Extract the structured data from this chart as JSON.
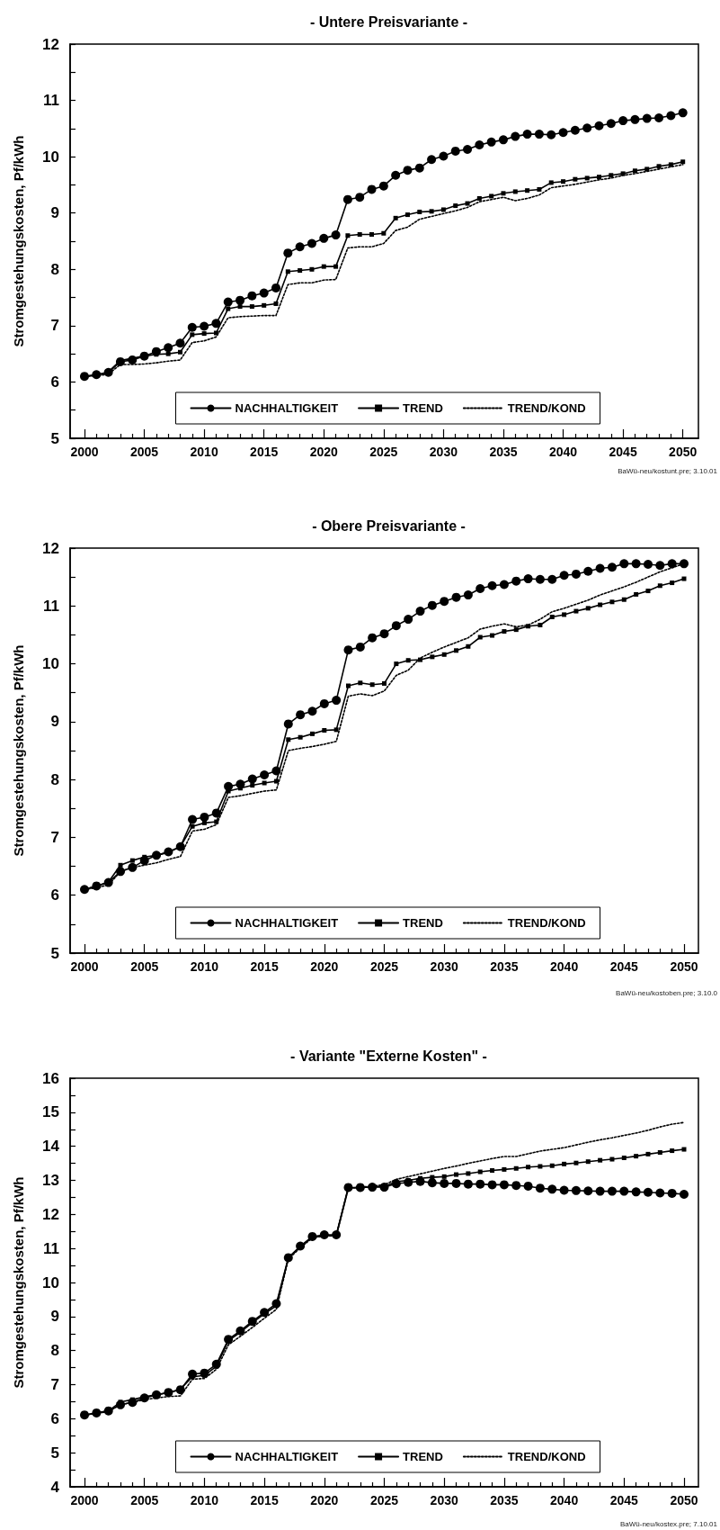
{
  "chart_data": [
    {
      "type": "line",
      "title": "- Untere Preisvariante -",
      "ylabel": "Stromgestehungskosten, Pf/kWh",
      "x": [
        2000,
        2001,
        2002,
        2003,
        2004,
        2005,
        2006,
        2007,
        2008,
        2009,
        2010,
        2011,
        2012,
        2013,
        2014,
        2015,
        2016,
        2017,
        2018,
        2019,
        2020,
        2021,
        2022,
        2023,
        2024,
        2025,
        2026,
        2027,
        2028,
        2029,
        2030,
        2031,
        2032,
        2033,
        2034,
        2035,
        2036,
        2037,
        2038,
        2039,
        2040,
        2041,
        2042,
        2043,
        2044,
        2045,
        2046,
        2047,
        2048,
        2049,
        2050
      ],
      "series": [
        {
          "name": "NACHHALTIGKEIT",
          "color": "#000000",
          "marker": "circle",
          "line_style": "solid",
          "values": [
            6.1,
            6.13,
            6.17,
            6.36,
            6.39,
            6.46,
            6.54,
            6.61,
            6.69,
            6.97,
            6.99,
            7.04,
            7.42,
            7.45,
            7.53,
            7.58,
            7.67,
            8.29,
            8.4,
            8.46,
            8.55,
            8.61,
            9.24,
            9.28,
            9.42,
            9.48,
            9.67,
            9.76,
            9.8,
            9.95,
            10.01,
            10.1,
            10.13,
            10.21,
            10.26,
            10.3,
            10.36,
            10.4,
            10.4,
            10.39,
            10.43,
            10.47,
            10.51,
            10.55,
            10.59,
            10.64,
            10.66,
            10.68,
            10.69,
            10.73,
            10.78
          ]
        },
        {
          "name": "TREND",
          "color": "#000000",
          "marker": "square",
          "line_style": "solid",
          "values": [
            6.1,
            6.12,
            6.18,
            6.38,
            6.42,
            6.46,
            6.49,
            6.5,
            6.53,
            6.84,
            6.86,
            6.87,
            7.3,
            7.34,
            7.34,
            7.36,
            7.39,
            7.96,
            7.98,
            8.0,
            8.05,
            8.05,
            8.6,
            8.62,
            8.62,
            8.64,
            8.91,
            8.97,
            9.02,
            9.03,
            9.06,
            9.13,
            9.17,
            9.26,
            9.3,
            9.35,
            9.38,
            9.4,
            9.42,
            9.54,
            9.56,
            9.6,
            9.62,
            9.64,
            9.67,
            9.7,
            9.75,
            9.78,
            9.83,
            9.86,
            9.91
          ]
        },
        {
          "name": "TREND/KOND",
          "color": "#000000",
          "marker": "none",
          "line_style": "dotted",
          "values": [
            6.1,
            6.11,
            6.14,
            6.31,
            6.31,
            6.32,
            6.34,
            6.37,
            6.39,
            6.7,
            6.73,
            6.8,
            7.14,
            7.16,
            7.17,
            7.18,
            7.18,
            7.73,
            7.76,
            7.76,
            7.81,
            7.82,
            8.38,
            8.4,
            8.4,
            8.46,
            8.69,
            8.75,
            8.89,
            8.94,
            8.99,
            9.04,
            9.1,
            9.2,
            9.24,
            9.28,
            9.22,
            9.26,
            9.32,
            9.45,
            9.48,
            9.51,
            9.55,
            9.59,
            9.62,
            9.67,
            9.7,
            9.74,
            9.78,
            9.82,
            9.86
          ]
        }
      ],
      "xlim": [
        1998.8,
        2051.3
      ],
      "xticks": [
        2000,
        {
          "value": 2001,
          "label": null
        },
        {
          "value": 2002,
          "label": null
        },
        {
          "value": 2003,
          "label": null
        },
        {
          "value": 2004,
          "label": null
        },
        2005,
        {
          "value": 2006,
          "label": null
        },
        {
          "value": 2007,
          "label": null
        },
        {
          "value": 2008,
          "label": null
        },
        {
          "value": 2009,
          "label": null
        },
        2010,
        {
          "value": 2011,
          "label": null
        },
        {
          "value": 2012,
          "label": null
        },
        {
          "value": 2013,
          "label": null
        },
        {
          "value": 2014,
          "label": null
        },
        2015,
        {
          "value": 2016,
          "label": null
        },
        {
          "value": 2017,
          "label": null
        },
        {
          "value": 2018,
          "label": null
        },
        {
          "value": 2019,
          "label": null
        },
        2020,
        {
          "value": 2021,
          "label": null
        },
        {
          "value": 2022,
          "label": null
        },
        {
          "value": 2023,
          "label": null
        },
        {
          "value": 2024,
          "label": null
        },
        2025,
        {
          "value": 2026,
          "label": null
        },
        {
          "value": 2027,
          "label": null
        },
        {
          "value": 2028,
          "label": null
        },
        {
          "value": 2029,
          "label": null
        },
        2030,
        {
          "value": 2031,
          "label": null
        },
        {
          "value": 2032,
          "label": null
        },
        {
          "value": 2033,
          "label": null
        },
        {
          "value": 2034,
          "label": null
        },
        2035,
        {
          "value": 2036,
          "label": null
        },
        {
          "value": 2037,
          "label": null
        },
        {
          "value": 2038,
          "label": null
        },
        {
          "value": 2039,
          "label": null
        },
        2040,
        {
          "value": 2041,
          "label": null
        },
        {
          "value": 2042,
          "label": null
        },
        {
          "value": 2043,
          "label": null
        },
        {
          "value": 2044,
          "label": null
        },
        2045,
        {
          "value": 2046,
          "label": null
        },
        {
          "value": 2047,
          "label": null
        },
        {
          "value": 2048,
          "label": null
        },
        {
          "value": 2049,
          "label": null
        },
        2050
      ],
      "ylim": [
        5,
        12
      ],
      "yticks": [
        5,
        {
          "value": 5.5,
          "label": null
        },
        6,
        {
          "value": 6.5,
          "label": null
        },
        7,
        {
          "value": 7.5,
          "label": null
        },
        8,
        {
          "value": 8.5,
          "label": null
        },
        9,
        {
          "value": 9.5,
          "label": null
        },
        10,
        {
          "value": 10.5,
          "label": null
        },
        11,
        {
          "value": 11.5,
          "label": null
        },
        12
      ],
      "legend": "bottom",
      "annotations": [
        "BaWü-neu/kostunt.pre; 3.10.01"
      ]
    },
    {
      "type": "line",
      "title": "- Obere Preisvariante -",
      "ylabel": "Stromgestehungskosten, Pf/kWh",
      "x": [
        2000,
        2001,
        2002,
        2003,
        2004,
        2005,
        2006,
        2007,
        2008,
        2009,
        2010,
        2011,
        2012,
        2013,
        2014,
        2015,
        2016,
        2017,
        2018,
        2019,
        2020,
        2021,
        2022,
        2023,
        2024,
        2025,
        2026,
        2027,
        2028,
        2029,
        2030,
        2031,
        2032,
        2033,
        2034,
        2035,
        2036,
        2037,
        2038,
        2039,
        2040,
        2041,
        2042,
        2043,
        2044,
        2045,
        2046,
        2047,
        2048,
        2049,
        2050
      ],
      "series": [
        {
          "name": "NACHHALTIGKEIT",
          "color": "#000000",
          "marker": "circle",
          "line_style": "solid",
          "values": [
            6.1,
            6.16,
            6.22,
            6.41,
            6.48,
            6.6,
            6.69,
            6.75,
            6.84,
            7.31,
            7.35,
            7.42,
            7.88,
            7.92,
            8.01,
            8.08,
            8.15,
            8.96,
            9.12,
            9.18,
            9.31,
            9.37,
            10.24,
            10.29,
            10.45,
            10.52,
            10.66,
            10.77,
            10.91,
            11.01,
            11.08,
            11.15,
            11.19,
            11.3,
            11.35,
            11.37,
            11.43,
            11.47,
            11.46,
            11.46,
            11.53,
            11.55,
            11.6,
            11.65,
            11.67,
            11.73,
            11.73,
            11.72,
            11.7,
            11.73,
            11.73
          ]
        },
        {
          "name": "TREND",
          "color": "#000000",
          "marker": "square",
          "line_style": "solid",
          "values": [
            6.1,
            6.16,
            6.23,
            6.52,
            6.6,
            6.66,
            6.69,
            6.74,
            6.84,
            7.19,
            7.25,
            7.27,
            7.8,
            7.85,
            7.9,
            7.94,
            7.97,
            8.69,
            8.73,
            8.79,
            8.85,
            8.86,
            9.62,
            9.67,
            9.64,
            9.66,
            10.0,
            10.06,
            10.07,
            10.12,
            10.16,
            10.23,
            10.3,
            10.46,
            10.49,
            10.56,
            10.59,
            10.65,
            10.67,
            10.81,
            10.85,
            10.91,
            10.96,
            11.02,
            11.07,
            11.11,
            11.2,
            11.26,
            11.35,
            11.4,
            11.47
          ]
        },
        {
          "name": "TREND/KOND",
          "color": "#000000",
          "marker": "none",
          "line_style": "dotted",
          "values": [
            6.1,
            6.13,
            6.18,
            6.41,
            6.48,
            6.52,
            6.56,
            6.62,
            6.67,
            7.11,
            7.14,
            7.22,
            7.69,
            7.72,
            7.76,
            7.8,
            7.82,
            8.5,
            8.54,
            8.57,
            8.61,
            8.66,
            9.44,
            9.48,
            9.45,
            9.53,
            9.8,
            9.89,
            10.1,
            10.2,
            10.29,
            10.37,
            10.45,
            10.6,
            10.65,
            10.69,
            10.64,
            10.67,
            10.77,
            10.9,
            10.96,
            11.03,
            11.1,
            11.19,
            11.26,
            11.33,
            11.41,
            11.5,
            11.59,
            11.66,
            11.73
          ]
        }
      ],
      "xlim": [
        1998.8,
        2051.2
      ],
      "xticks": [
        2000,
        {
          "value": 2001,
          "label": null
        },
        {
          "value": 2002,
          "label": null
        },
        {
          "value": 2003,
          "label": null
        },
        {
          "value": 2004,
          "label": null
        },
        2005,
        {
          "value": 2006,
          "label": null
        },
        {
          "value": 2007,
          "label": null
        },
        {
          "value": 2008,
          "label": null
        },
        {
          "value": 2009,
          "label": null
        },
        2010,
        {
          "value": 2011,
          "label": null
        },
        {
          "value": 2012,
          "label": null
        },
        {
          "value": 2013,
          "label": null
        },
        {
          "value": 2014,
          "label": null
        },
        2015,
        {
          "value": 2016,
          "label": null
        },
        {
          "value": 2017,
          "label": null
        },
        {
          "value": 2018,
          "label": null
        },
        {
          "value": 2019,
          "label": null
        },
        2020,
        {
          "value": 2021,
          "label": null
        },
        {
          "value": 2022,
          "label": null
        },
        {
          "value": 2023,
          "label": null
        },
        {
          "value": 2024,
          "label": null
        },
        2025,
        {
          "value": 2026,
          "label": null
        },
        {
          "value": 2027,
          "label": null
        },
        {
          "value": 2028,
          "label": null
        },
        {
          "value": 2029,
          "label": null
        },
        2030,
        {
          "value": 2031,
          "label": null
        },
        {
          "value": 2032,
          "label": null
        },
        {
          "value": 2033,
          "label": null
        },
        {
          "value": 2034,
          "label": null
        },
        2035,
        {
          "value": 2036,
          "label": null
        },
        {
          "value": 2037,
          "label": null
        },
        {
          "value": 2038,
          "label": null
        },
        {
          "value": 2039,
          "label": null
        },
        2040,
        {
          "value": 2041,
          "label": null
        },
        {
          "value": 2042,
          "label": null
        },
        {
          "value": 2043,
          "label": null
        },
        {
          "value": 2044,
          "label": null
        },
        2045,
        {
          "value": 2046,
          "label": null
        },
        {
          "value": 2047,
          "label": null
        },
        {
          "value": 2048,
          "label": null
        },
        {
          "value": 2049,
          "label": null
        },
        2050
      ],
      "ylim": [
        5,
        12
      ],
      "yticks": [
        5,
        {
          "value": 5.5,
          "label": null
        },
        6,
        {
          "value": 6.5,
          "label": null
        },
        7,
        {
          "value": 7.5,
          "label": null
        },
        8,
        {
          "value": 8.5,
          "label": null
        },
        9,
        {
          "value": 9.5,
          "label": null
        },
        10,
        {
          "value": 10.5,
          "label": null
        },
        11,
        {
          "value": 11.5,
          "label": null
        },
        12
      ],
      "legend": "bottom",
      "annotations": [
        "BaWü-neu/kostoben.pre; 3.10.0"
      ]
    },
    {
      "type": "line",
      "title": "- Variante \"Externe Kosten\" -",
      "ylabel": "Stromgestehungskosten, Pf/kWh",
      "x": [
        2000,
        2001,
        2002,
        2003,
        2004,
        2005,
        2006,
        2007,
        2008,
        2009,
        2010,
        2011,
        2012,
        2013,
        2014,
        2015,
        2016,
        2017,
        2018,
        2019,
        2020,
        2021,
        2022,
        2023,
        2024,
        2025,
        2026,
        2027,
        2028,
        2029,
        2030,
        2031,
        2032,
        2033,
        2034,
        2035,
        2036,
        2037,
        2038,
        2039,
        2040,
        2041,
        2042,
        2043,
        2044,
        2045,
        2046,
        2047,
        2048,
        2049,
        2050
      ],
      "series": [
        {
          "name": "NACHHALTIGKEIT",
          "color": "#000000",
          "marker": "circle",
          "line_style": "solid",
          "values": [
            6.11,
            6.17,
            6.23,
            6.41,
            6.48,
            6.61,
            6.7,
            6.77,
            6.85,
            7.31,
            7.34,
            7.6,
            8.33,
            8.58,
            8.86,
            9.12,
            9.38,
            10.73,
            11.07,
            11.35,
            11.4,
            11.4,
            12.79,
            12.79,
            12.8,
            12.8,
            12.9,
            12.94,
            12.97,
            12.93,
            12.91,
            12.91,
            12.89,
            12.89,
            12.87,
            12.87,
            12.85,
            12.83,
            12.77,
            12.74,
            12.71,
            12.7,
            12.69,
            12.68,
            12.68,
            12.68,
            12.66,
            12.65,
            12.63,
            12.62,
            12.59
          ]
        },
        {
          "name": "TREND",
          "color": "#000000",
          "marker": "square",
          "line_style": "solid",
          "values": [
            6.11,
            6.16,
            6.23,
            6.49,
            6.56,
            6.64,
            6.71,
            6.76,
            6.87,
            7.23,
            7.27,
            7.54,
            8.29,
            8.54,
            8.82,
            9.08,
            9.32,
            10.71,
            11.05,
            11.33,
            11.38,
            11.38,
            12.78,
            12.79,
            12.81,
            12.82,
            12.96,
            13.0,
            13.06,
            13.09,
            13.11,
            13.17,
            13.2,
            13.25,
            13.29,
            13.32,
            13.35,
            13.39,
            13.41,
            13.43,
            13.48,
            13.51,
            13.55,
            13.59,
            13.62,
            13.66,
            13.71,
            13.77,
            13.82,
            13.87,
            13.91
          ]
        },
        {
          "name": "TREND/KOND",
          "color": "#000000",
          "marker": "none",
          "line_style": "dotted",
          "values": [
            6.11,
            6.15,
            6.21,
            6.41,
            6.48,
            6.56,
            6.61,
            6.65,
            6.67,
            7.16,
            7.18,
            7.45,
            8.17,
            8.42,
            8.68,
            8.95,
            9.21,
            10.69,
            11.02,
            11.31,
            11.37,
            11.37,
            12.76,
            12.8,
            12.83,
            12.87,
            13.03,
            13.11,
            13.19,
            13.27,
            13.35,
            13.42,
            13.5,
            13.57,
            13.64,
            13.7,
            13.7,
            13.78,
            13.86,
            13.91,
            13.96,
            14.04,
            14.12,
            14.19,
            14.25,
            14.32,
            14.39,
            14.47,
            14.57,
            14.65,
            14.7
          ]
        }
      ],
      "xlim": [
        1998.8,
        2051.2
      ],
      "xticks": [
        2000,
        {
          "value": 2001,
          "label": null
        },
        {
          "value": 2002,
          "label": null
        },
        {
          "value": 2003,
          "label": null
        },
        {
          "value": 2004,
          "label": null
        },
        2005,
        {
          "value": 2006,
          "label": null
        },
        {
          "value": 2007,
          "label": null
        },
        {
          "value": 2008,
          "label": null
        },
        {
          "value": 2009,
          "label": null
        },
        2010,
        {
          "value": 2011,
          "label": null
        },
        {
          "value": 2012,
          "label": null
        },
        {
          "value": 2013,
          "label": null
        },
        {
          "value": 2014,
          "label": null
        },
        2015,
        {
          "value": 2016,
          "label": null
        },
        {
          "value": 2017,
          "label": null
        },
        {
          "value": 2018,
          "label": null
        },
        {
          "value": 2019,
          "label": null
        },
        2020,
        {
          "value": 2021,
          "label": null
        },
        {
          "value": 2022,
          "label": null
        },
        {
          "value": 2023,
          "label": null
        },
        {
          "value": 2024,
          "label": null
        },
        2025,
        {
          "value": 2026,
          "label": null
        },
        {
          "value": 2027,
          "label": null
        },
        {
          "value": 2028,
          "label": null
        },
        {
          "value": 2029,
          "label": null
        },
        2030,
        {
          "value": 2031,
          "label": null
        },
        {
          "value": 2032,
          "label": null
        },
        {
          "value": 2033,
          "label": null
        },
        {
          "value": 2034,
          "label": null
        },
        2035,
        {
          "value": 2036,
          "label": null
        },
        {
          "value": 2037,
          "label": null
        },
        {
          "value": 2038,
          "label": null
        },
        {
          "value": 2039,
          "label": null
        },
        2040,
        {
          "value": 2041,
          "label": null
        },
        {
          "value": 2042,
          "label": null
        },
        {
          "value": 2043,
          "label": null
        },
        {
          "value": 2044,
          "label": null
        },
        2045,
        {
          "value": 2046,
          "label": null
        },
        {
          "value": 2047,
          "label": null
        },
        {
          "value": 2048,
          "label": null
        },
        {
          "value": 2049,
          "label": null
        },
        2050
      ],
      "ylim": [
        4,
        16
      ],
      "yticks": [
        4,
        {
          "value": 4.5,
          "label": null
        },
        5,
        {
          "value": 5.5,
          "label": null
        },
        6,
        {
          "value": 6.5,
          "label": null
        },
        7,
        {
          "value": 7.5,
          "label": null
        },
        8,
        {
          "value": 8.5,
          "label": null
        },
        9,
        {
          "value": 9.5,
          "label": null
        },
        10,
        {
          "value": 10.5,
          "label": null
        },
        11,
        {
          "value": 11.5,
          "label": null
        },
        12,
        {
          "value": 12.5,
          "label": null
        },
        13,
        {
          "value": 13.5,
          "label": null
        },
        14,
        {
          "value": 14.5,
          "label": null
        },
        15,
        {
          "value": 15.5,
          "label": null
        },
        16
      ],
      "legend": "bottom",
      "annotations": [
        "BaWü-neu/kostex.pre; 7.10.01"
      ]
    }
  ]
}
